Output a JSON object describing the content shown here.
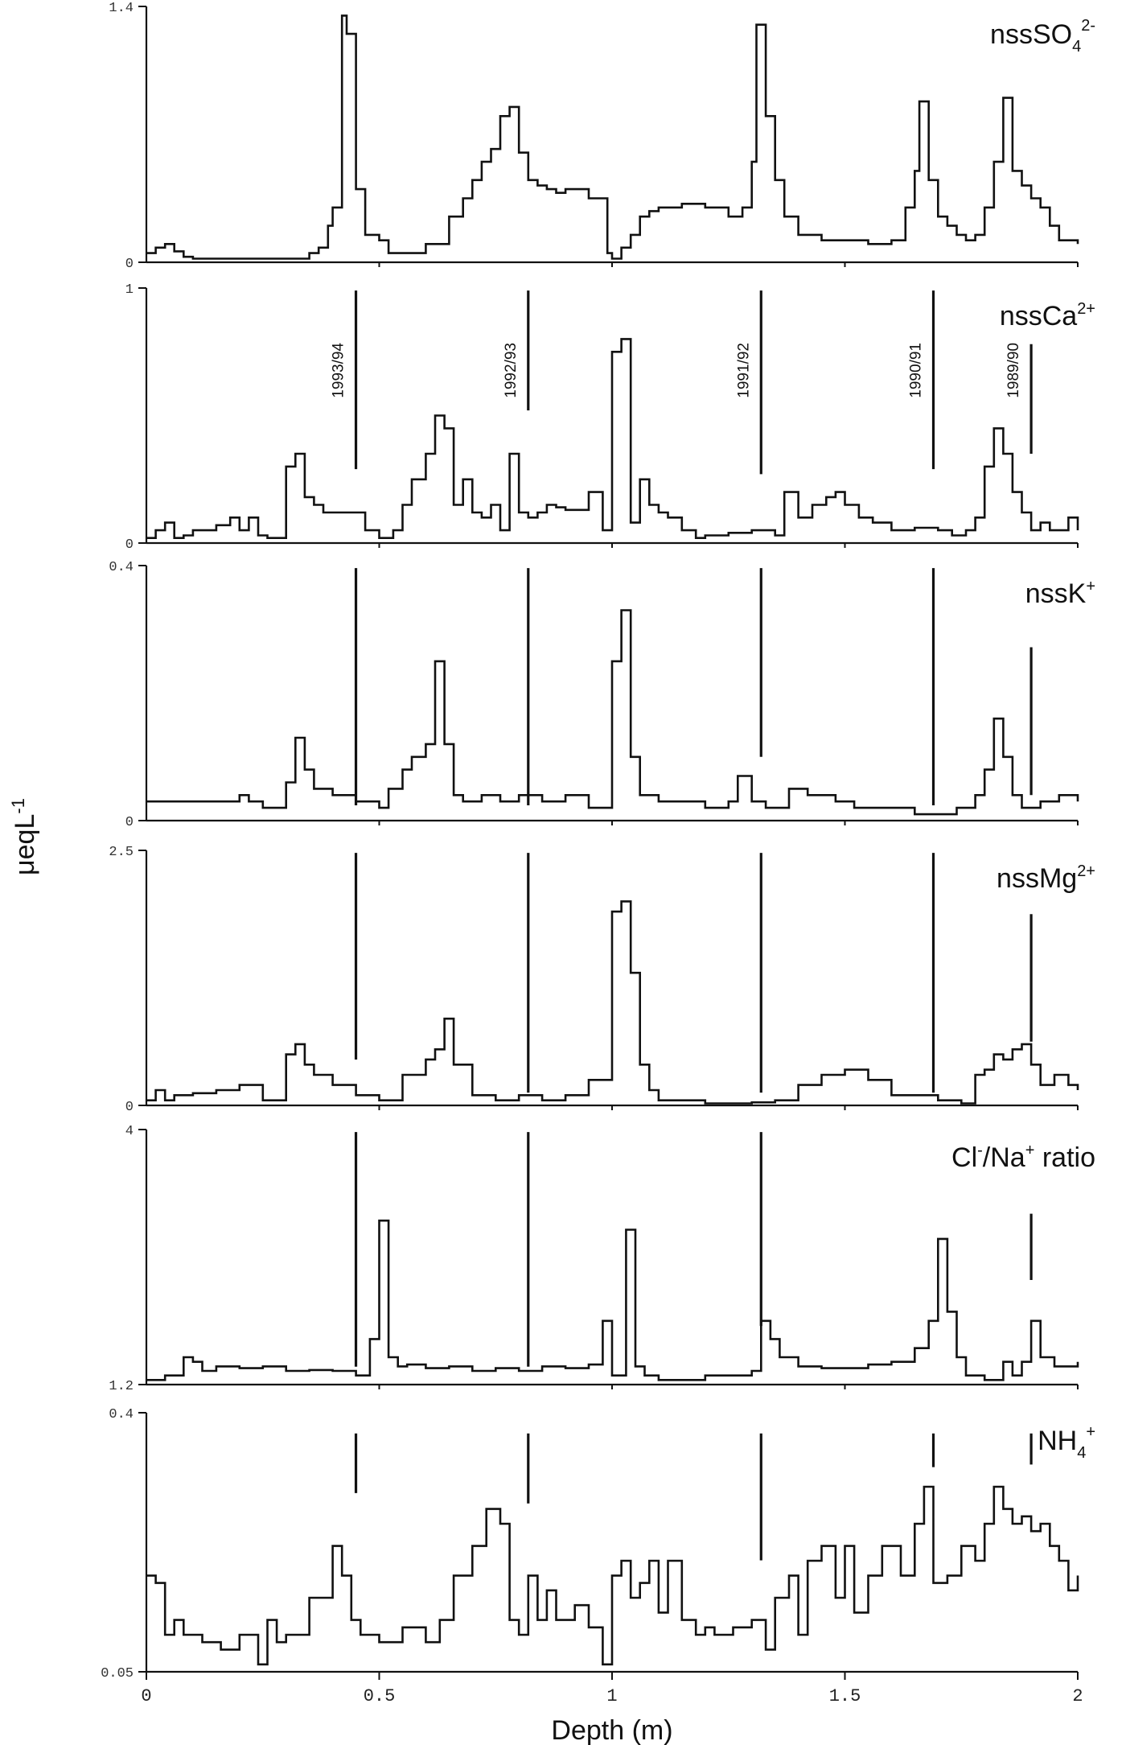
{
  "chart_data": {
    "type": "line",
    "step": true,
    "xlabel": "Depth (m)",
    "ylabel_main": "μeqL",
    "ylabel_exp": "-1",
    "xlim": [
      0,
      2
    ],
    "xticks": [
      {
        "v": 0,
        "l": "0"
      },
      {
        "v": 0.5,
        "l": "0.5"
      },
      {
        "v": 1,
        "l": "1"
      },
      {
        "v": 1.5,
        "l": "1.5"
      },
      {
        "v": 2,
        "l": "2"
      }
    ],
    "year_labels": [
      {
        "text": "1993/94",
        "x": 0.45
      },
      {
        "text": "1992/93",
        "x": 0.82
      },
      {
        "text": "1991/92",
        "x": 1.32
      },
      {
        "text": "1990/91",
        "x": 1.69
      },
      {
        "text": "1989/90",
        "x": 1.9
      }
    ],
    "panels": [
      {
        "name": "nssSO",
        "sub": "4",
        "sup": "2-",
        "ymin": 0,
        "ymax": 1.4,
        "ymin_label": "0",
        "ymax_label": "1.4",
        "markers": [],
        "x": [
          0,
          0.02,
          0.04,
          0.06,
          0.08,
          0.1,
          0.15,
          0.2,
          0.25,
          0.3,
          0.35,
          0.37,
          0.39,
          0.4,
          0.42,
          0.43,
          0.45,
          0.47,
          0.5,
          0.52,
          0.55,
          0.6,
          0.65,
          0.68,
          0.7,
          0.72,
          0.74,
          0.76,
          0.78,
          0.8,
          0.82,
          0.84,
          0.86,
          0.88,
          0.9,
          0.95,
          0.99,
          1.0,
          1.02,
          1.04,
          1.06,
          1.08,
          1.1,
          1.15,
          1.2,
          1.25,
          1.28,
          1.3,
          1.31,
          1.33,
          1.35,
          1.37,
          1.4,
          1.45,
          1.5,
          1.55,
          1.6,
          1.63,
          1.65,
          1.66,
          1.68,
          1.7,
          1.72,
          1.74,
          1.76,
          1.78,
          1.8,
          1.82,
          1.84,
          1.86,
          1.88,
          1.9,
          1.92,
          1.94,
          1.96,
          1.98,
          2.0
        ],
        "y": [
          0.05,
          0.08,
          0.1,
          0.06,
          0.03,
          0.02,
          0.02,
          0.02,
          0.02,
          0.02,
          0.05,
          0.08,
          0.2,
          0.3,
          1.35,
          1.25,
          0.4,
          0.15,
          0.12,
          0.05,
          0.05,
          0.1,
          0.25,
          0.35,
          0.45,
          0.55,
          0.62,
          0.8,
          0.85,
          0.6,
          0.45,
          0.42,
          0.4,
          0.38,
          0.4,
          0.35,
          0.05,
          0.02,
          0.08,
          0.15,
          0.25,
          0.28,
          0.3,
          0.32,
          0.3,
          0.25,
          0.3,
          0.55,
          1.3,
          0.8,
          0.45,
          0.25,
          0.15,
          0.12,
          0.12,
          0.1,
          0.12,
          0.3,
          0.5,
          0.88,
          0.45,
          0.25,
          0.2,
          0.15,
          0.12,
          0.15,
          0.3,
          0.55,
          0.9,
          0.5,
          0.42,
          0.35,
          0.3,
          0.2,
          0.12,
          0.12,
          0.1
        ]
      },
      {
        "name": "nssCa",
        "sub": "",
        "sup": "2+",
        "ymin": 0,
        "ymax": 1,
        "ymin_label": "0",
        "ymax_label": "1",
        "markers": [
          {
            "x": 0.45,
            "top": 0.99,
            "bottom": 0.29
          },
          {
            "x": 0.82,
            "top": 0.99,
            "bottom": 0.52
          },
          {
            "x": 1.32,
            "top": 0.99,
            "bottom": 0.27
          },
          {
            "x": 1.69,
            "top": 0.99,
            "bottom": 0.29
          },
          {
            "x": 1.9,
            "top": 0.78,
            "bottom": 0.35
          }
        ],
        "x": [
          0,
          0.02,
          0.04,
          0.06,
          0.08,
          0.1,
          0.15,
          0.18,
          0.2,
          0.22,
          0.24,
          0.26,
          0.3,
          0.32,
          0.34,
          0.36,
          0.38,
          0.4,
          0.45,
          0.47,
          0.5,
          0.53,
          0.55,
          0.57,
          0.6,
          0.62,
          0.64,
          0.66,
          0.68,
          0.7,
          0.72,
          0.74,
          0.76,
          0.78,
          0.8,
          0.82,
          0.84,
          0.86,
          0.88,
          0.9,
          0.95,
          0.98,
          1.0,
          1.02,
          1.04,
          1.06,
          1.08,
          1.1,
          1.12,
          1.15,
          1.18,
          1.2,
          1.25,
          1.3,
          1.35,
          1.37,
          1.4,
          1.43,
          1.46,
          1.48,
          1.5,
          1.53,
          1.56,
          1.6,
          1.65,
          1.7,
          1.73,
          1.76,
          1.78,
          1.8,
          1.82,
          1.84,
          1.86,
          1.88,
          1.9,
          1.92,
          1.94,
          1.96,
          1.98,
          2.0
        ],
        "y": [
          0.02,
          0.05,
          0.08,
          0.02,
          0.03,
          0.05,
          0.07,
          0.1,
          0.05,
          0.1,
          0.03,
          0.02,
          0.3,
          0.35,
          0.18,
          0.15,
          0.12,
          0.12,
          0.12,
          0.05,
          0.02,
          0.05,
          0.15,
          0.25,
          0.35,
          0.5,
          0.45,
          0.15,
          0.25,
          0.12,
          0.1,
          0.15,
          0.05,
          0.35,
          0.12,
          0.1,
          0.12,
          0.15,
          0.14,
          0.13,
          0.2,
          0.05,
          0.75,
          0.8,
          0.08,
          0.25,
          0.15,
          0.12,
          0.1,
          0.05,
          0.02,
          0.03,
          0.04,
          0.05,
          0.03,
          0.2,
          0.1,
          0.15,
          0.18,
          0.2,
          0.15,
          0.1,
          0.08,
          0.05,
          0.06,
          0.05,
          0.03,
          0.05,
          0.1,
          0.3,
          0.45,
          0.35,
          0.2,
          0.12,
          0.05,
          0.08,
          0.05,
          0.05,
          0.1,
          0.05
        ]
      },
      {
        "name": "nssK",
        "sub": "",
        "sup": "+",
        "ymin": 0,
        "ymax": 0.4,
        "ymin_label": "0",
        "ymax_label": "0.4",
        "markers": [
          {
            "x": 0.45,
            "top": 0.99,
            "bottom": 0.06
          },
          {
            "x": 0.82,
            "top": 0.99,
            "bottom": 0.06
          },
          {
            "x": 1.32,
            "top": 0.99,
            "bottom": 0.25
          },
          {
            "x": 1.69,
            "top": 0.99,
            "bottom": 0.06
          },
          {
            "x": 1.9,
            "top": 0.68,
            "bottom": 0.1
          }
        ],
        "x": [
          0,
          0.05,
          0.1,
          0.15,
          0.2,
          0.22,
          0.25,
          0.3,
          0.32,
          0.34,
          0.36,
          0.4,
          0.45,
          0.5,
          0.52,
          0.55,
          0.57,
          0.6,
          0.62,
          0.64,
          0.66,
          0.68,
          0.72,
          0.76,
          0.8,
          0.85,
          0.9,
          0.95,
          1.0,
          1.02,
          1.04,
          1.06,
          1.1,
          1.2,
          1.25,
          1.27,
          1.3,
          1.33,
          1.38,
          1.42,
          1.48,
          1.52,
          1.55,
          1.6,
          1.65,
          1.7,
          1.74,
          1.78,
          1.8,
          1.82,
          1.84,
          1.86,
          1.88,
          1.92,
          1.96,
          2.0
        ],
        "y": [
          0.03,
          0.03,
          0.03,
          0.03,
          0.04,
          0.03,
          0.02,
          0.06,
          0.13,
          0.08,
          0.05,
          0.04,
          0.03,
          0.02,
          0.05,
          0.08,
          0.1,
          0.12,
          0.25,
          0.12,
          0.04,
          0.03,
          0.04,
          0.03,
          0.04,
          0.03,
          0.04,
          0.02,
          0.25,
          0.33,
          0.1,
          0.04,
          0.03,
          0.02,
          0.03,
          0.07,
          0.03,
          0.02,
          0.05,
          0.04,
          0.03,
          0.02,
          0.02,
          0.02,
          0.01,
          0.01,
          0.02,
          0.04,
          0.08,
          0.16,
          0.1,
          0.04,
          0.02,
          0.03,
          0.04,
          0.03
        ]
      },
      {
        "name": "nssMg",
        "sub": "",
        "sup": "2+",
        "ymin": 0,
        "ymax": 2.5,
        "ymin_label": "0",
        "ymax_label": "2.5",
        "markers": [
          {
            "x": 0.45,
            "top": 0.99,
            "bottom": 0.18
          },
          {
            "x": 0.82,
            "top": 0.99,
            "bottom": 0.05
          },
          {
            "x": 1.32,
            "top": 0.99,
            "bottom": 0.05
          },
          {
            "x": 1.69,
            "top": 0.99,
            "bottom": 0.05
          },
          {
            "x": 1.9,
            "top": 0.75,
            "bottom": 0.25
          }
        ],
        "x": [
          0,
          0.02,
          0.04,
          0.06,
          0.1,
          0.15,
          0.2,
          0.25,
          0.3,
          0.32,
          0.34,
          0.36,
          0.4,
          0.45,
          0.5,
          0.55,
          0.6,
          0.62,
          0.64,
          0.66,
          0.7,
          0.75,
          0.8,
          0.85,
          0.9,
          0.95,
          1.0,
          1.02,
          1.04,
          1.06,
          1.08,
          1.1,
          1.2,
          1.3,
          1.35,
          1.4,
          1.45,
          1.5,
          1.55,
          1.6,
          1.65,
          1.7,
          1.75,
          1.78,
          1.8,
          1.82,
          1.84,
          1.86,
          1.88,
          1.9,
          1.92,
          1.95,
          1.98,
          2.0
        ],
        "y": [
          0.05,
          0.15,
          0.05,
          0.1,
          0.12,
          0.15,
          0.2,
          0.05,
          0.5,
          0.6,
          0.4,
          0.3,
          0.2,
          0.1,
          0.05,
          0.3,
          0.45,
          0.55,
          0.85,
          0.4,
          0.1,
          0.05,
          0.1,
          0.05,
          0.1,
          0.25,
          1.9,
          2.0,
          1.3,
          0.4,
          0.15,
          0.05,
          0.02,
          0.03,
          0.05,
          0.2,
          0.3,
          0.35,
          0.25,
          0.1,
          0.1,
          0.05,
          0.02,
          0.3,
          0.35,
          0.5,
          0.45,
          0.55,
          0.6,
          0.4,
          0.2,
          0.3,
          0.2,
          0.15
        ]
      },
      {
        "name": "Cl",
        "sub": "",
        "sup": "-",
        "name2": "/Na",
        "sup2": "+",
        "name3": " ratio",
        "ymin": 1.2,
        "ymax": 4,
        "ymin_label": "1.2",
        "ymax_label": "4",
        "markers": [
          {
            "x": 0.45,
            "top": 0.99,
            "bottom": 0.07
          },
          {
            "x": 0.82,
            "top": 0.99,
            "bottom": 0.07
          },
          {
            "x": 1.32,
            "top": 0.99,
            "bottom": 0.23
          },
          {
            "x": 1.9,
            "top": 0.67,
            "bottom": 0.41
          }
        ],
        "x": [
          0,
          0.04,
          0.08,
          0.1,
          0.12,
          0.15,
          0.2,
          0.25,
          0.3,
          0.35,
          0.4,
          0.45,
          0.48,
          0.5,
          0.52,
          0.54,
          0.56,
          0.6,
          0.65,
          0.7,
          0.75,
          0.8,
          0.85,
          0.9,
          0.95,
          0.98,
          1.0,
          1.03,
          1.05,
          1.07,
          1.1,
          1.2,
          1.3,
          1.32,
          1.34,
          1.36,
          1.4,
          1.45,
          1.5,
          1.55,
          1.6,
          1.65,
          1.68,
          1.7,
          1.72,
          1.74,
          1.76,
          1.8,
          1.84,
          1.86,
          1.88,
          1.9,
          1.92,
          1.95,
          2.0
        ],
        "y": [
          1.25,
          1.3,
          1.5,
          1.45,
          1.35,
          1.4,
          1.38,
          1.4,
          1.35,
          1.36,
          1.35,
          1.3,
          1.7,
          3.0,
          1.5,
          1.4,
          1.42,
          1.38,
          1.4,
          1.35,
          1.38,
          1.35,
          1.4,
          1.38,
          1.42,
          1.9,
          1.3,
          2.9,
          1.4,
          1.3,
          1.25,
          1.3,
          1.35,
          1.9,
          1.7,
          1.5,
          1.4,
          1.38,
          1.38,
          1.42,
          1.45,
          1.6,
          1.9,
          2.8,
          2.0,
          1.5,
          1.3,
          1.25,
          1.45,
          1.3,
          1.45,
          1.9,
          1.5,
          1.4,
          1.45
        ]
      },
      {
        "name": "NH",
        "sub": "4",
        "sup": "+",
        "ymin": 0.05,
        "ymax": 0.4,
        "ymin_label": "0.05",
        "ymax_label": "0.4",
        "markers": [
          {
            "x": 0.45,
            "top": 0.92,
            "bottom": 0.69
          },
          {
            "x": 0.82,
            "top": 0.92,
            "bottom": 0.65
          },
          {
            "x": 1.32,
            "top": 0.92,
            "bottom": 0.43
          },
          {
            "x": 1.69,
            "top": 0.92,
            "bottom": 0.79
          },
          {
            "x": 1.9,
            "top": 0.92,
            "bottom": 0.8
          }
        ],
        "x": [
          0,
          0.02,
          0.04,
          0.06,
          0.08,
          0.12,
          0.16,
          0.2,
          0.24,
          0.26,
          0.28,
          0.3,
          0.35,
          0.4,
          0.42,
          0.44,
          0.46,
          0.5,
          0.55,
          0.6,
          0.63,
          0.66,
          0.7,
          0.73,
          0.76,
          0.78,
          0.8,
          0.82,
          0.84,
          0.86,
          0.88,
          0.92,
          0.95,
          0.98,
          1.0,
          1.02,
          1.04,
          1.06,
          1.08,
          1.1,
          1.12,
          1.15,
          1.18,
          1.2,
          1.22,
          1.26,
          1.3,
          1.33,
          1.35,
          1.38,
          1.4,
          1.42,
          1.45,
          1.48,
          1.5,
          1.52,
          1.55,
          1.58,
          1.62,
          1.65,
          1.67,
          1.69,
          1.72,
          1.75,
          1.78,
          1.8,
          1.82,
          1.84,
          1.86,
          1.88,
          1.9,
          1.92,
          1.94,
          1.96,
          1.98,
          2.0
        ],
        "y": [
          0.18,
          0.17,
          0.1,
          0.12,
          0.1,
          0.09,
          0.08,
          0.1,
          0.06,
          0.12,
          0.09,
          0.1,
          0.15,
          0.22,
          0.18,
          0.12,
          0.1,
          0.09,
          0.11,
          0.09,
          0.12,
          0.18,
          0.22,
          0.27,
          0.25,
          0.12,
          0.1,
          0.18,
          0.12,
          0.16,
          0.12,
          0.14,
          0.11,
          0.06,
          0.18,
          0.2,
          0.15,
          0.17,
          0.2,
          0.13,
          0.2,
          0.12,
          0.1,
          0.11,
          0.1,
          0.11,
          0.12,
          0.08,
          0.15,
          0.18,
          0.1,
          0.2,
          0.22,
          0.15,
          0.22,
          0.13,
          0.18,
          0.22,
          0.18,
          0.25,
          0.3,
          0.17,
          0.18,
          0.22,
          0.2,
          0.25,
          0.3,
          0.27,
          0.25,
          0.26,
          0.24,
          0.25,
          0.22,
          0.2,
          0.16,
          0.18
        ]
      }
    ]
  }
}
